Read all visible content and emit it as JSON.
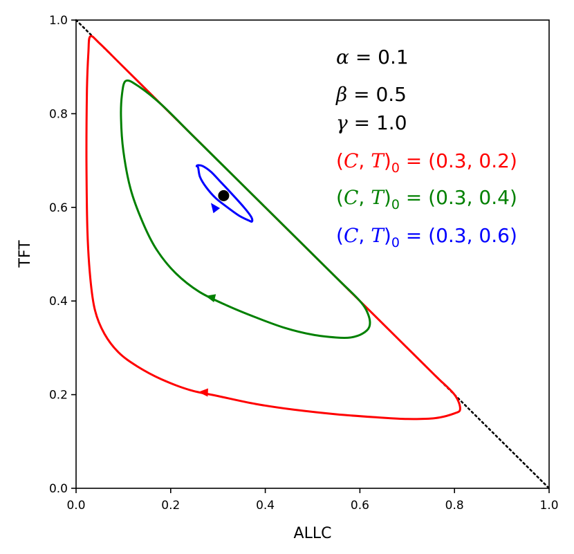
{
  "chart_data": {
    "type": "line",
    "xlabel": "ALLC",
    "ylabel": "TFT",
    "xlim": [
      0.0,
      1.0
    ],
    "ylim": [
      0.0,
      1.0
    ],
    "x_ticks": [
      "0.0",
      "0.2",
      "0.4",
      "0.6",
      "0.8",
      "1.0"
    ],
    "y_ticks": [
      "0.0",
      "0.2",
      "0.4",
      "0.6",
      "0.8",
      "1.0"
    ],
    "grid": false,
    "params": [
      {
        "sym": "α",
        "eq": " = 0.1"
      },
      {
        "sym": "β",
        "eq": " = 0.5"
      },
      {
        "sym": "γ",
        "eq": " = 1.0"
      }
    ],
    "initial_conditions": [
      {
        "open": "(",
        "c": "C",
        "comma": ", ",
        "t": "T",
        "close": ")",
        "sub": "0",
        "eq": " = (0.3, 0.2)",
        "color": "#ff0000"
      },
      {
        "open": "(",
        "c": "C",
        "comma": ", ",
        "t": "T",
        "close": ")",
        "sub": "0",
        "eq": " = (0.3, 0.4)",
        "color": "#008000"
      },
      {
        "open": "(",
        "c": "C",
        "comma": ", ",
        "t": "T",
        "close": ")",
        "sub": "0",
        "eq": " = (0.3, 0.6)",
        "color": "#0000ff"
      }
    ],
    "series": [
      {
        "color": "#ff0000",
        "arrow_at": [
          0.27,
          0.205
        ],
        "arrow_dir": [
          -1,
          0.05
        ],
        "x": [
          0.03,
          0.026,
          0.023,
          0.022,
          0.024,
          0.03,
          0.04,
          0.06,
          0.09,
          0.13,
          0.18,
          0.24,
          0.3,
          0.38,
          0.46,
          0.55,
          0.63,
          0.7,
          0.76,
          0.8,
          0.812,
          0.8,
          0.76,
          0.7,
          0.6,
          0.5,
          0.4,
          0.3,
          0.2,
          0.1,
          0.05,
          0.03
        ],
        "y": [
          0.965,
          0.93,
          0.85,
          0.7,
          0.55,
          0.45,
          0.38,
          0.33,
          0.29,
          0.26,
          0.233,
          0.21,
          0.197,
          0.18,
          0.168,
          0.158,
          0.152,
          0.148,
          0.15,
          0.16,
          0.17,
          0.2,
          0.24,
          0.3,
          0.4,
          0.5,
          0.6,
          0.7,
          0.8,
          0.9,
          0.95,
          0.965
        ]
      },
      {
        "color": "#008000",
        "arrow_at": [
          0.285,
          0.408
        ],
        "arrow_dir": [
          -1,
          0.25
        ],
        "x": [
          0.105,
          0.097,
          0.095,
          0.1,
          0.115,
          0.14,
          0.17,
          0.21,
          0.26,
          0.32,
          0.38,
          0.44,
          0.5,
          0.55,
          0.58,
          0.605,
          0.62,
          0.618,
          0.6,
          0.55,
          0.45,
          0.35,
          0.25,
          0.18,
          0.13,
          0.105
        ],
        "y": [
          0.87,
          0.84,
          0.79,
          0.72,
          0.64,
          0.57,
          0.51,
          0.46,
          0.42,
          0.39,
          0.365,
          0.343,
          0.328,
          0.322,
          0.322,
          0.33,
          0.345,
          0.37,
          0.4,
          0.45,
          0.55,
          0.65,
          0.75,
          0.82,
          0.86,
          0.87
        ]
      },
      {
        "color": "#0000ff",
        "arrow_at": [
          0.292,
          0.6
        ],
        "arrow_dir": [
          -0.6,
          0.8
        ],
        "x": [
          0.258,
          0.262,
          0.275,
          0.295,
          0.32,
          0.345,
          0.365,
          0.372,
          0.37,
          0.355,
          0.33,
          0.305,
          0.285,
          0.268,
          0.258,
          0.255,
          0.258
        ],
        "y": [
          0.685,
          0.665,
          0.643,
          0.62,
          0.6,
          0.582,
          0.572,
          0.57,
          0.58,
          0.6,
          0.628,
          0.655,
          0.676,
          0.688,
          0.69,
          0.688,
          0.685
        ]
      }
    ],
    "fixed_point": {
      "x": 0.312,
      "y": 0.625,
      "color": "#000000"
    },
    "diagonal": {
      "from": [
        0.0,
        1.0
      ],
      "to": [
        1.0,
        0.0
      ],
      "style": "dotted",
      "color": "#000000"
    }
  }
}
